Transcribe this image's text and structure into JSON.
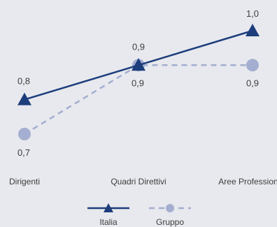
{
  "chart_data": {
    "type": "line",
    "categories": [
      "Dirigenti",
      "Quadri Direttivi",
      "Aree Professionali"
    ],
    "series": [
      {
        "name": "Italia",
        "values": [
          0.8,
          0.9,
          1.0
        ],
        "labels": [
          "0,8",
          "0,9",
          "1,0"
        ],
        "color": "#1d3d7c",
        "marker": "triangle",
        "dash": "solid"
      },
      {
        "name": "Gruppo",
        "values": [
          0.7,
          0.9,
          0.9
        ],
        "labels": [
          "0,7",
          "0,9",
          "0,9"
        ],
        "color": "#a3aed0",
        "marker": "circle",
        "dash": "dashed"
      }
    ],
    "legend_position": "bottom",
    "grid": false,
    "background": "#e8e9ee"
  }
}
